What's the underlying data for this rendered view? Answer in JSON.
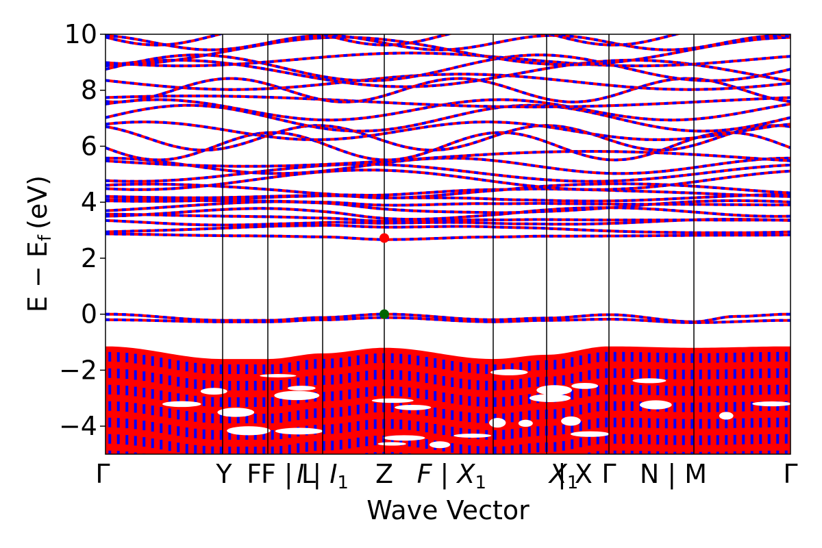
{
  "chart_data": {
    "type": "line",
    "title": "",
    "xlabel": "Wave Vector",
    "ylabel": "E − E_f (eV)",
    "ylabel_parts": {
      "main": "E − E",
      "sub": "f",
      "unit": "(eV)"
    },
    "ylim": [
      -5,
      10
    ],
    "yticks": [
      -4,
      -2,
      0,
      2,
      4,
      6,
      8,
      10
    ],
    "ytick_labels": [
      "−4",
      "−2",
      "0",
      "2",
      "4",
      "6",
      "8",
      "10"
    ],
    "xlim": [
      0,
      1
    ],
    "kpoints": [
      {
        "label": "Γ",
        "x": 0.0
      },
      {
        "label": "Y",
        "x": 0.171
      },
      {
        "label": "F",
        "x": 0.237
      },
      {
        "label": "F | L",
        "x": 0.237
      },
      {
        "label": "I | I",
        "x": 0.317,
        "sub": "1"
      },
      {
        "label": "Z",
        "x": 0.407
      },
      {
        "label": "F | X",
        "x": 0.566,
        "sub": "1"
      },
      {
        "label": "X",
        "x": 0.644,
        "sub": "1"
      },
      {
        "label": "| X",
        "x": 0.644
      },
      {
        "label": "Γ",
        "x": 0.735
      },
      {
        "label": "N | M",
        "x": 0.859
      },
      {
        "label": "Γ",
        "x": 1.0
      }
    ],
    "divider_lines_x": [
      0.171,
      0.237,
      0.317,
      0.407,
      0.566,
      0.644,
      0.735,
      0.859
    ],
    "series": [
      {
        "name": "",
        "color": "#ff0000",
        "style": "solid"
      },
      {
        "name": "",
        "color": "#0000ff",
        "style": "dashed"
      }
    ],
    "valence_band_max": {
      "x": 0.407,
      "y": 0.0,
      "color": "#006400"
    },
    "conduction_band_min": {
      "x": 0.407,
      "y": 2.72,
      "color": "#ff0000"
    },
    "bands": {
      "valence_top": [
        [
          0,
          0.0
        ],
        [
          0.171,
          -0.22
        ],
        [
          0.237,
          -0.22
        ],
        [
          0.317,
          -0.12
        ],
        [
          0.407,
          0.0
        ],
        [
          0.566,
          -0.2
        ],
        [
          0.644,
          -0.14
        ],
        [
          0.735,
          -0.02
        ],
        [
          0.859,
          -0.27
        ],
        [
          0.92,
          -0.08
        ],
        [
          1.0,
          0.0
        ]
      ],
      "valence_second": [
        [
          0,
          -0.2
        ],
        [
          0.171,
          -0.27
        ],
        [
          0.237,
          -0.27
        ],
        [
          0.317,
          -0.2
        ],
        [
          0.407,
          -0.12
        ],
        [
          0.566,
          -0.27
        ],
        [
          0.644,
          -0.22
        ],
        [
          0.735,
          -0.18
        ],
        [
          0.859,
          -0.3
        ],
        [
          1.0,
          -0.22
        ]
      ],
      "deep_valence_top": [
        [
          0,
          -1.15
        ],
        [
          0.171,
          -1.6
        ],
        [
          0.237,
          -1.6
        ],
        [
          0.317,
          -1.4
        ],
        [
          0.407,
          -1.2
        ],
        [
          0.566,
          -1.6
        ],
        [
          0.644,
          -1.45
        ],
        [
          0.735,
          -1.15
        ],
        [
          0.859,
          -1.2
        ],
        [
          1.0,
          -1.15
        ]
      ],
      "conduction_bottom": [
        [
          0,
          2.85
        ],
        [
          0.171,
          2.82
        ],
        [
          0.237,
          2.82
        ],
        [
          0.317,
          2.8
        ],
        [
          0.407,
          2.72
        ],
        [
          0.566,
          2.82
        ],
        [
          0.644,
          2.85
        ],
        [
          0.735,
          2.85
        ],
        [
          0.859,
          2.86
        ],
        [
          1.0,
          2.85
        ]
      ]
    }
  }
}
